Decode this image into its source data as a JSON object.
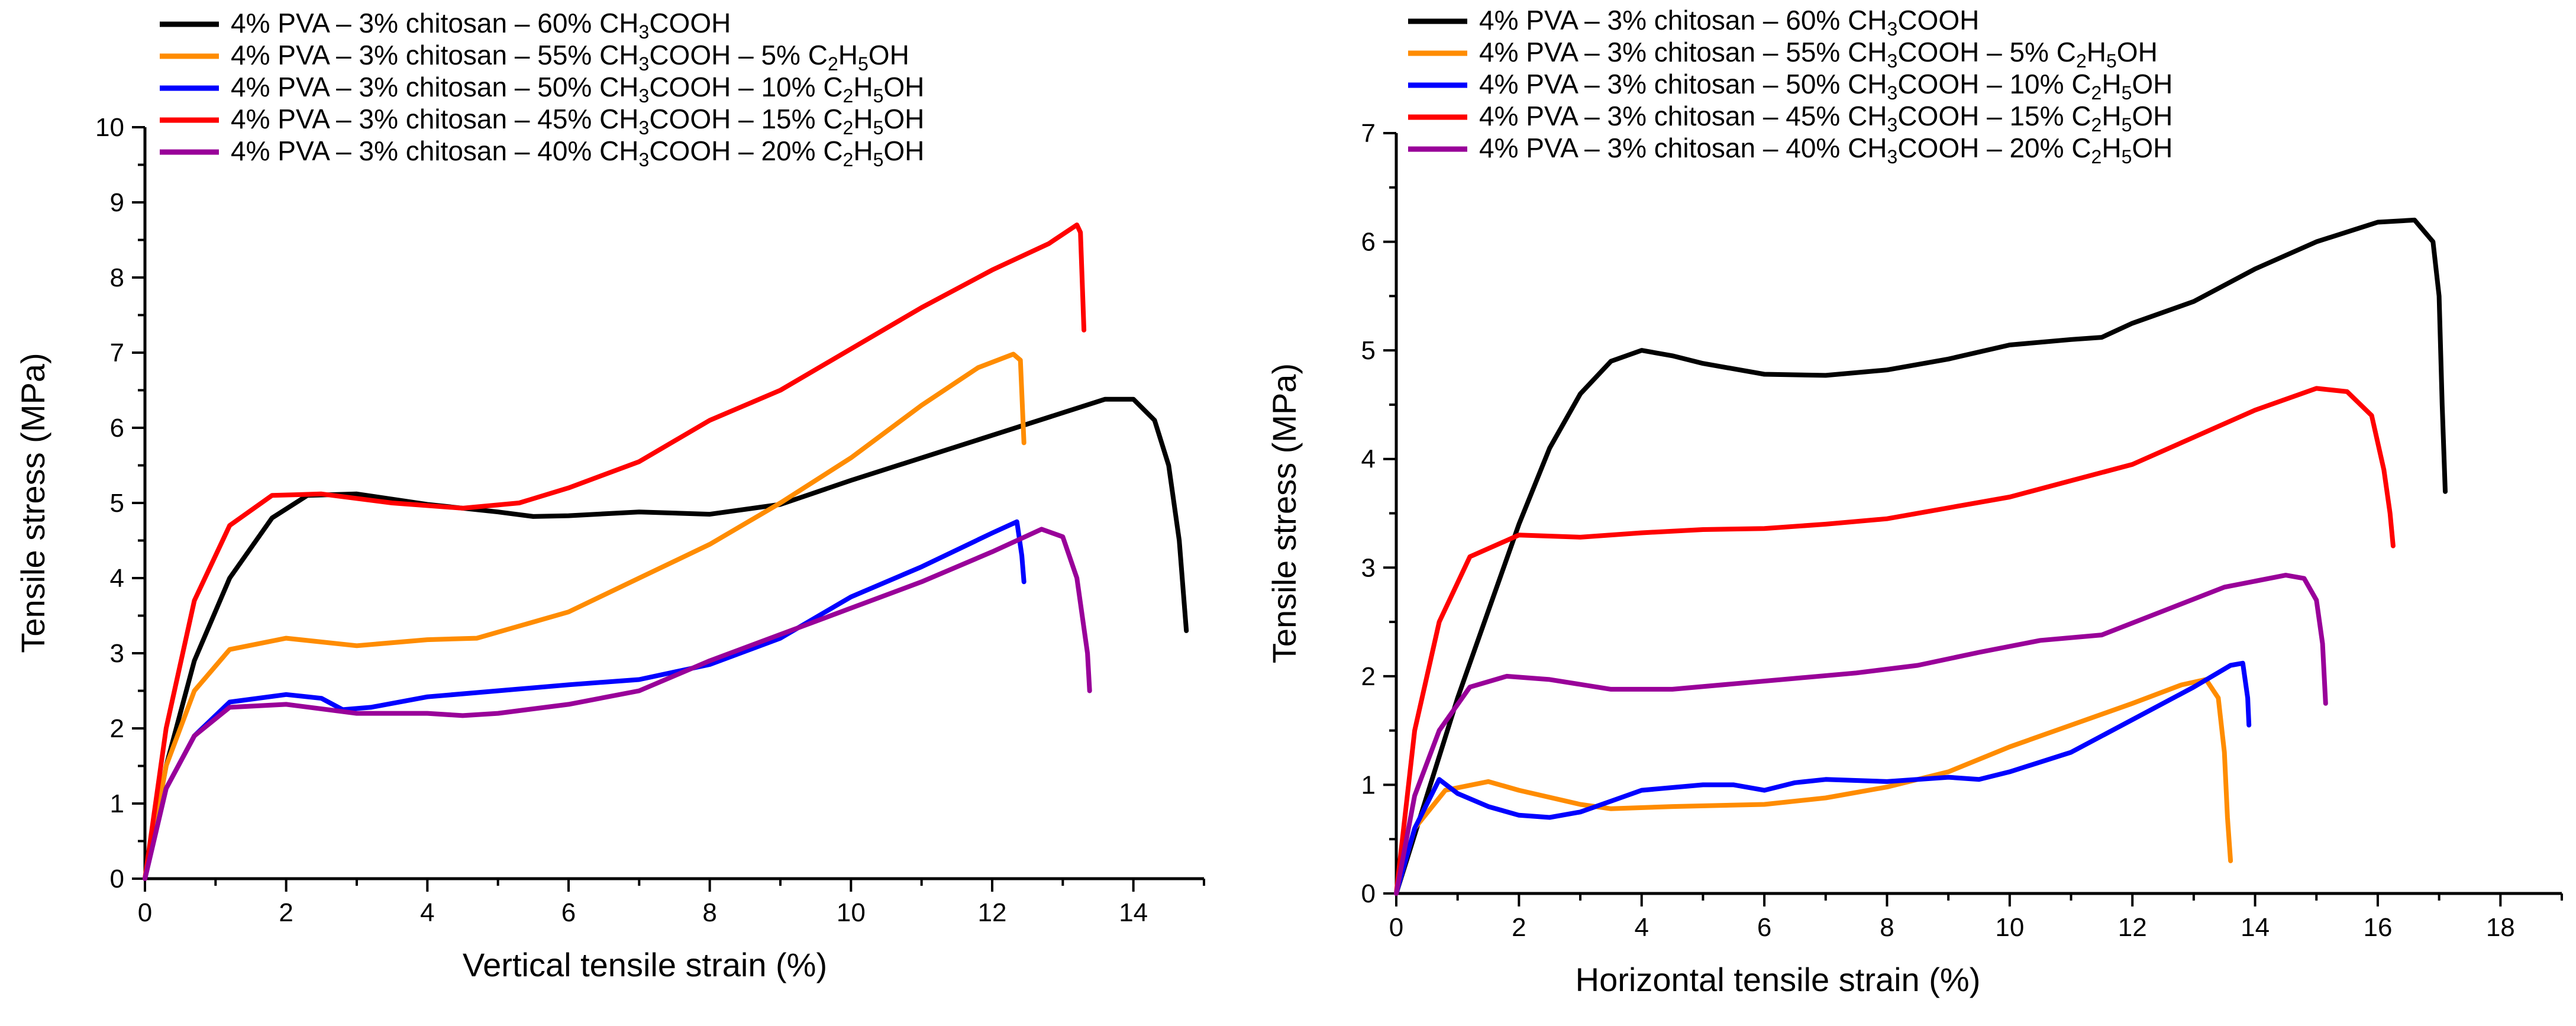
{
  "chart_data": [
    {
      "type": "line",
      "xlabel": "Vertical tensile strain (%)",
      "ylabel": "Tensile stress (MPa)",
      "xlim": [
        0,
        15
      ],
      "ylim": [
        0,
        10
      ],
      "xticks": [
        0,
        2,
        4,
        6,
        8,
        10,
        12,
        14
      ],
      "yticks": [
        0,
        1,
        2,
        3,
        4,
        5,
        6,
        7,
        8,
        9,
        10
      ],
      "legend_position": "top-left",
      "series": [
        {
          "name": "4% PVA – 3% chitosan – 60% CH3COOH",
          "label": {
            "a": "4% PVA – 3% chitosan – 60% CH",
            "s1": "3",
            "b": "COOH"
          },
          "color": "#000000",
          "points": [
            [
              0,
              0
            ],
            [
              0.3,
              1.5
            ],
            [
              0.7,
              2.9
            ],
            [
              1.2,
              4.0
            ],
            [
              1.8,
              4.8
            ],
            [
              2.3,
              5.1
            ],
            [
              3.0,
              5.12
            ],
            [
              4.0,
              4.98
            ],
            [
              5.0,
              4.88
            ],
            [
              5.5,
              4.82
            ],
            [
              6.0,
              4.83
            ],
            [
              7.0,
              4.88
            ],
            [
              8.0,
              4.85
            ],
            [
              9.0,
              4.98
            ],
            [
              10.0,
              5.3
            ],
            [
              11.0,
              5.6
            ],
            [
              12.0,
              5.9
            ],
            [
              13.0,
              6.2
            ],
            [
              13.6,
              6.38
            ],
            [
              14.0,
              6.38
            ],
            [
              14.3,
              6.1
            ],
            [
              14.5,
              5.5
            ],
            [
              14.65,
              4.5
            ],
            [
              14.75,
              3.3
            ]
          ]
        },
        {
          "name": "4% PVA – 3% chitosan – 55% CH3COOH – 5% C2H5OH",
          "label": {
            "a": "4% PVA – 3% chitosan – 55% CH",
            "s1": "3",
            "b": "COOH – 5% C",
            "s2": "2",
            "c": "H",
            "s3": "5",
            "d": "OH"
          },
          "color": "#FF8C00",
          "points": [
            [
              0,
              0
            ],
            [
              0.3,
              1.5
            ],
            [
              0.7,
              2.5
            ],
            [
              1.2,
              3.05
            ],
            [
              2.0,
              3.2
            ],
            [
              3.0,
              3.1
            ],
            [
              4.0,
              3.18
            ],
            [
              4.7,
              3.2
            ],
            [
              6.0,
              3.55
            ],
            [
              7.0,
              4.0
            ],
            [
              8.0,
              4.45
            ],
            [
              9.0,
              5.0
            ],
            [
              10.0,
              5.6
            ],
            [
              11.0,
              6.3
            ],
            [
              11.8,
              6.8
            ],
            [
              12.3,
              6.98
            ],
            [
              12.4,
              6.9
            ],
            [
              12.45,
              5.8
            ]
          ]
        },
        {
          "name": "4% PVA – 3% chitosan – 50% CH3COOH – 10% C2H5OH",
          "label": {
            "a": "4% PVA – 3% chitosan – 50% CH",
            "s1": "3",
            "b": "COOH – 10% C",
            "s2": "2",
            "c": "H",
            "s3": "5",
            "d": "OH"
          },
          "color": "#0000FF",
          "points": [
            [
              0,
              0
            ],
            [
              0.3,
              1.2
            ],
            [
              0.7,
              1.9
            ],
            [
              1.2,
              2.35
            ],
            [
              2.0,
              2.45
            ],
            [
              2.5,
              2.4
            ],
            [
              2.8,
              2.25
            ],
            [
              3.2,
              2.28
            ],
            [
              4.0,
              2.42
            ],
            [
              5.0,
              2.5
            ],
            [
              6.0,
              2.58
            ],
            [
              7.0,
              2.65
            ],
            [
              8.0,
              2.85
            ],
            [
              9.0,
              3.2
            ],
            [
              10.0,
              3.75
            ],
            [
              11.0,
              4.15
            ],
            [
              12.0,
              4.6
            ],
            [
              12.35,
              4.75
            ],
            [
              12.42,
              4.3
            ],
            [
              12.45,
              3.95
            ]
          ]
        },
        {
          "name": "4% PVA – 3% chitosan – 45% CH3COOH – 15% C2H5OH",
          "label": {
            "a": "4% PVA – 3% chitosan – 45% CH",
            "s1": "3",
            "b": "COOH – 15% C",
            "s2": "2",
            "c": "H",
            "s3": "5",
            "d": "OH"
          },
          "color": "#FF0000",
          "points": [
            [
              0,
              0
            ],
            [
              0.3,
              2.0
            ],
            [
              0.7,
              3.7
            ],
            [
              1.2,
              4.7
            ],
            [
              1.8,
              5.1
            ],
            [
              2.5,
              5.12
            ],
            [
              3.5,
              5.0
            ],
            [
              4.5,
              4.93
            ],
            [
              5.3,
              5.0
            ],
            [
              6.0,
              5.2
            ],
            [
              7.0,
              5.55
            ],
            [
              8.0,
              6.1
            ],
            [
              9.0,
              6.5
            ],
            [
              10.0,
              7.05
            ],
            [
              11.0,
              7.6
            ],
            [
              12.0,
              8.1
            ],
            [
              12.8,
              8.45
            ],
            [
              13.2,
              8.7
            ],
            [
              13.25,
              8.6
            ],
            [
              13.3,
              7.3
            ]
          ]
        },
        {
          "name": "4% PVA – 3% chitosan – 40% CH3COOH – 20% C2H5OH",
          "label": {
            "a": "4% PVA – 3% chitosan – 40% CH",
            "s1": "3",
            "b": "COOH – 20% C",
            "s2": "2",
            "c": "H",
            "s3": "5",
            "d": "OH"
          },
          "color": "#990099",
          "points": [
            [
              0,
              0
            ],
            [
              0.3,
              1.2
            ],
            [
              0.7,
              1.9
            ],
            [
              1.2,
              2.28
            ],
            [
              2.0,
              2.32
            ],
            [
              3.0,
              2.2
            ],
            [
              4.0,
              2.2
            ],
            [
              4.5,
              2.17
            ],
            [
              5.0,
              2.2
            ],
            [
              6.0,
              2.32
            ],
            [
              7.0,
              2.5
            ],
            [
              8.0,
              2.9
            ],
            [
              9.0,
              3.25
            ],
            [
              10.0,
              3.6
            ],
            [
              11.0,
              3.95
            ],
            [
              12.0,
              4.35
            ],
            [
              12.7,
              4.65
            ],
            [
              13.0,
              4.55
            ],
            [
              13.2,
              4.0
            ],
            [
              13.35,
              3.0
            ],
            [
              13.38,
              2.5
            ]
          ]
        }
      ]
    },
    {
      "type": "line",
      "xlabel": "Horizontal tensile strain (%)",
      "ylabel": "Tensile stress (MPa)",
      "xlim": [
        0,
        19
      ],
      "ylim": [
        0,
        7
      ],
      "xticks": [
        0,
        2,
        4,
        6,
        8,
        10,
        12,
        14,
        16,
        18
      ],
      "yticks": [
        0,
        1,
        2,
        3,
        4,
        5,
        6,
        7
      ],
      "legend_position": "top-left",
      "series": [
        {
          "name": "4% PVA – 3% chitosan – 60% CH3COOH",
          "label": {
            "a": "4% PVA – 3% chitosan – 60% CH",
            "s1": "3",
            "b": "COOH"
          },
          "color": "#000000",
          "points": [
            [
              0,
              0
            ],
            [
              0.5,
              0.9
            ],
            [
              1.0,
              1.8
            ],
            [
              1.5,
              2.6
            ],
            [
              2.0,
              3.4
            ],
            [
              2.5,
              4.1
            ],
            [
              3.0,
              4.6
            ],
            [
              3.5,
              4.9
            ],
            [
              4.0,
              5.0
            ],
            [
              4.5,
              4.95
            ],
            [
              5.0,
              4.88
            ],
            [
              6.0,
              4.78
            ],
            [
              7.0,
              4.77
            ],
            [
              8.0,
              4.82
            ],
            [
              9.0,
              4.92
            ],
            [
              10.0,
              5.05
            ],
            [
              11.0,
              5.1
            ],
            [
              11.5,
              5.12
            ],
            [
              12.0,
              5.25
            ],
            [
              13.0,
              5.45
            ],
            [
              14.0,
              5.75
            ],
            [
              15.0,
              6.0
            ],
            [
              16.0,
              6.18
            ],
            [
              16.6,
              6.2
            ],
            [
              16.9,
              6.0
            ],
            [
              17.0,
              5.5
            ],
            [
              17.05,
              4.5
            ],
            [
              17.1,
              3.7
            ]
          ]
        },
        {
          "name": "4% PVA – 3% chitosan – 55% CH3COOH – 5% C2H5OH",
          "label": {
            "a": "4% PVA – 3% chitosan – 55% CH",
            "s1": "3",
            "b": "COOH – 5% C",
            "s2": "2",
            "c": "H",
            "s3": "5",
            "d": "OH"
          },
          "color": "#FF8C00",
          "points": [
            [
              0,
              0
            ],
            [
              0.3,
              0.6
            ],
            [
              0.8,
              0.95
            ],
            [
              1.5,
              1.03
            ],
            [
              2.0,
              0.95
            ],
            [
              3.0,
              0.82
            ],
            [
              3.5,
              0.78
            ],
            [
              4.5,
              0.8
            ],
            [
              6.0,
              0.82
            ],
            [
              7.0,
              0.88
            ],
            [
              8.0,
              0.98
            ],
            [
              9.0,
              1.12
            ],
            [
              10.0,
              1.35
            ],
            [
              11.0,
              1.55
            ],
            [
              12.0,
              1.75
            ],
            [
              12.8,
              1.92
            ],
            [
              13.2,
              1.97
            ],
            [
              13.4,
              1.8
            ],
            [
              13.5,
              1.3
            ],
            [
              13.55,
              0.7
            ],
            [
              13.6,
              0.3
            ]
          ]
        },
        {
          "name": "4% PVA – 3% chitosan – 50% CH3COOH – 10% C2H5OH",
          "label": {
            "a": "4% PVA – 3% chitosan – 50% CH",
            "s1": "3",
            "b": "COOH – 10% C",
            "s2": "2",
            "c": "H",
            "s3": "5",
            "d": "OH"
          },
          "color": "#0000FF",
          "points": [
            [
              0,
              0
            ],
            [
              0.3,
              0.6
            ],
            [
              0.7,
              1.05
            ],
            [
              1.0,
              0.92
            ],
            [
              1.5,
              0.8
            ],
            [
              2.0,
              0.72
            ],
            [
              2.5,
              0.7
            ],
            [
              3.0,
              0.75
            ],
            [
              3.5,
              0.85
            ],
            [
              4.0,
              0.95
            ],
            [
              5.0,
              1.0
            ],
            [
              5.5,
              1.0
            ],
            [
              6.0,
              0.95
            ],
            [
              6.5,
              1.02
            ],
            [
              7.0,
              1.05
            ],
            [
              8.0,
              1.03
            ],
            [
              9.0,
              1.07
            ],
            [
              9.5,
              1.05
            ],
            [
              10.0,
              1.12
            ],
            [
              11.0,
              1.3
            ],
            [
              12.0,
              1.6
            ],
            [
              13.0,
              1.9
            ],
            [
              13.6,
              2.1
            ],
            [
              13.8,
              2.12
            ],
            [
              13.88,
              1.8
            ],
            [
              13.9,
              1.55
            ]
          ]
        },
        {
          "name": "4% PVA – 3% chitosan – 45% CH3COOH – 15% C2H5OH",
          "label": {
            "a": "4% PVA – 3% chitosan – 45% CH",
            "s1": "3",
            "b": "COOH – 15% C",
            "s2": "2",
            "c": "H",
            "s3": "5",
            "d": "OH"
          },
          "color": "#FF0000",
          "points": [
            [
              0,
              0
            ],
            [
              0.3,
              1.5
            ],
            [
              0.7,
              2.5
            ],
            [
              1.2,
              3.1
            ],
            [
              2.0,
              3.3
            ],
            [
              3.0,
              3.28
            ],
            [
              4.0,
              3.32
            ],
            [
              5.0,
              3.35
            ],
            [
              6.0,
              3.36
            ],
            [
              7.0,
              3.4
            ],
            [
              8.0,
              3.45
            ],
            [
              9.0,
              3.55
            ],
            [
              10.0,
              3.65
            ],
            [
              11.0,
              3.8
            ],
            [
              12.0,
              3.95
            ],
            [
              13.0,
              4.2
            ],
            [
              14.0,
              4.45
            ],
            [
              15.0,
              4.65
            ],
            [
              15.5,
              4.62
            ],
            [
              15.9,
              4.4
            ],
            [
              16.1,
              3.9
            ],
            [
              16.2,
              3.5
            ],
            [
              16.25,
              3.2
            ]
          ]
        },
        {
          "name": "4% PVA – 3% chitosan – 40% CH3COOH – 20% C2H5OH",
          "label": {
            "a": "4% PVA – 3% chitosan – 40% CH",
            "s1": "3",
            "b": "COOH – 20% C",
            "s2": "2",
            "c": "H",
            "s3": "5",
            "d": "OH"
          },
          "color": "#990099",
          "points": [
            [
              0,
              0
            ],
            [
              0.3,
              0.9
            ],
            [
              0.7,
              1.5
            ],
            [
              1.2,
              1.9
            ],
            [
              1.8,
              2.0
            ],
            [
              2.5,
              1.97
            ],
            [
              3.5,
              1.88
            ],
            [
              4.5,
              1.88
            ],
            [
              5.5,
              1.93
            ],
            [
              6.5,
              1.98
            ],
            [
              7.5,
              2.03
            ],
            [
              8.5,
              2.1
            ],
            [
              9.5,
              2.22
            ],
            [
              10.5,
              2.33
            ],
            [
              11.5,
              2.38
            ],
            [
              12.5,
              2.6
            ],
            [
              13.5,
              2.82
            ],
            [
              14.5,
              2.93
            ],
            [
              14.8,
              2.9
            ],
            [
              15.0,
              2.7
            ],
            [
              15.1,
              2.3
            ],
            [
              15.15,
              1.75
            ]
          ]
        }
      ]
    }
  ]
}
